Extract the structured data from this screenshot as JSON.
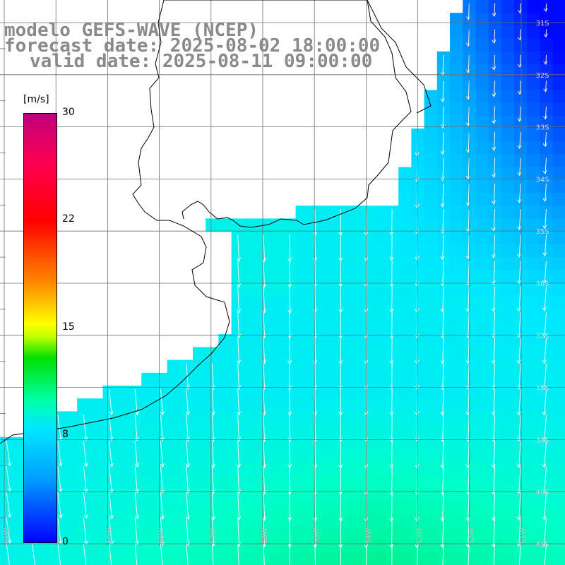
{
  "title": {
    "line1": "modelo GEFS-WAVE (NCEP)",
    "line2": "forecast date: 2025-08-02 18:00:00",
    "line3": "valid date: 2025-08-11 09:00:00"
  },
  "colorbar": {
    "unit": "[m/s]",
    "ticks": [
      "30",
      "22",
      "15",
      "8",
      "0"
    ],
    "stops": [
      "#0000ff",
      "#00a0ff",
      "#00e8ff",
      "#00ffaa",
      "#00e000",
      "#c0ff00",
      "#ffff00",
      "#ff9000",
      "#ff0000",
      "#ff0050",
      "#c0007a"
    ]
  },
  "lat_labels": [
    "31S",
    "32S",
    "33S",
    "34S",
    "35S",
    "36S",
    "37S",
    "38S",
    "39S",
    "40S",
    "41S"
  ],
  "lon_labels": [
    "61W",
    "60W",
    "59W",
    "58W",
    "57W",
    "56W",
    "55W",
    "54W",
    "53W",
    "52W",
    "51W"
  ],
  "colors": {
    "land": "#ffffff",
    "coast": "#000000",
    "grid": "#888888",
    "arrow": "#ffffff"
  }
}
